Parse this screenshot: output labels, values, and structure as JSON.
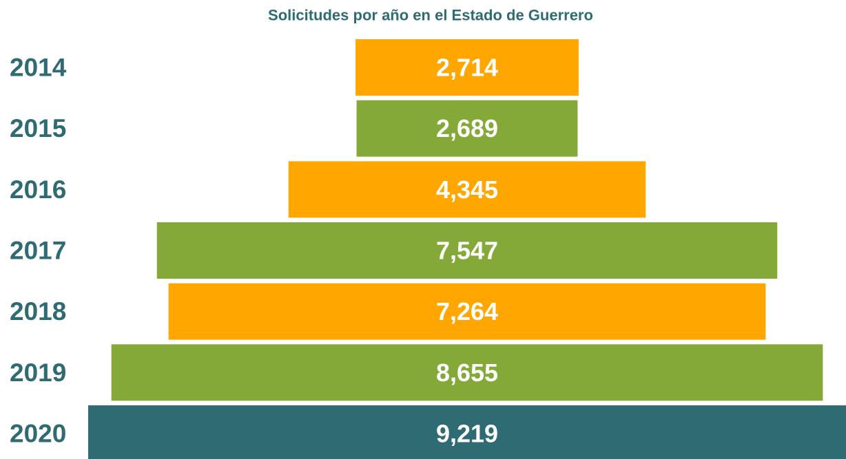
{
  "chart_data": {
    "type": "funnel",
    "title": "Solicitudes por año en el Estado de Guerrero",
    "categories": [
      "2014",
      "2015",
      "2016",
      "2017",
      "2018",
      "2019",
      "2020"
    ],
    "values": [
      2714,
      2689,
      4345,
      7547,
      7264,
      8655,
      9219
    ],
    "value_labels": [
      "2,714",
      "2,689",
      "4,345",
      "7,547",
      "7,264",
      "8,655",
      "9,219"
    ],
    "colors": [
      "#ffa600",
      "#84a939",
      "#ffa600",
      "#84a939",
      "#ffa600",
      "#84a939",
      "#2e6b72"
    ]
  }
}
